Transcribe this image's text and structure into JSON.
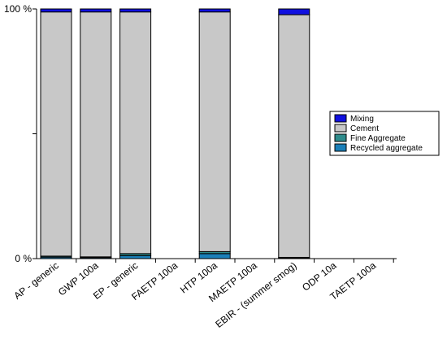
{
  "chart_data": {
    "type": "bar",
    "stacked": true,
    "normalized": true,
    "categories": [
      "AP - generic",
      "GWP 100a",
      "EP - generic",
      "FAETP 100a",
      "HTP 100a",
      "MAETP 100a",
      "EBIR - (summer smog)",
      "ODP 10a",
      "TAETP 100a"
    ],
    "series": [
      {
        "name": "Recycled aggregate",
        "color": "#1a7fb8",
        "values": [
          0.6,
          0.4,
          1.2,
          0,
          2.0,
          0,
          0.3,
          0,
          0
        ]
      },
      {
        "name": "Fine Aggregate",
        "color": "#2e8b8b",
        "values": [
          0.4,
          0.3,
          0.8,
          0,
          0.8,
          0,
          0.2,
          0,
          0
        ]
      },
      {
        "name": "Cement",
        "color": "#c8c8c8",
        "values": [
          97.8,
          98.1,
          96.8,
          0,
          96.0,
          0,
          97.2,
          0,
          0
        ]
      },
      {
        "name": "Mixing",
        "color": "#1010e0",
        "values": [
          1.2,
          1.2,
          1.2,
          0,
          1.2,
          0,
          2.3,
          0,
          0
        ]
      }
    ],
    "legend_order": [
      "Mixing",
      "Cement",
      "Fine Aggregate",
      "Recycled aggregate"
    ],
    "y_ticks": [
      {
        "value": 0,
        "label": "0 %"
      },
      {
        "value": 50,
        "label": ""
      },
      {
        "value": 100,
        "label": "100 %"
      }
    ],
    "ylim": [
      0,
      100
    ],
    "title": "",
    "xlabel": "",
    "ylabel": "",
    "grid": false,
    "legend_position": "right"
  }
}
